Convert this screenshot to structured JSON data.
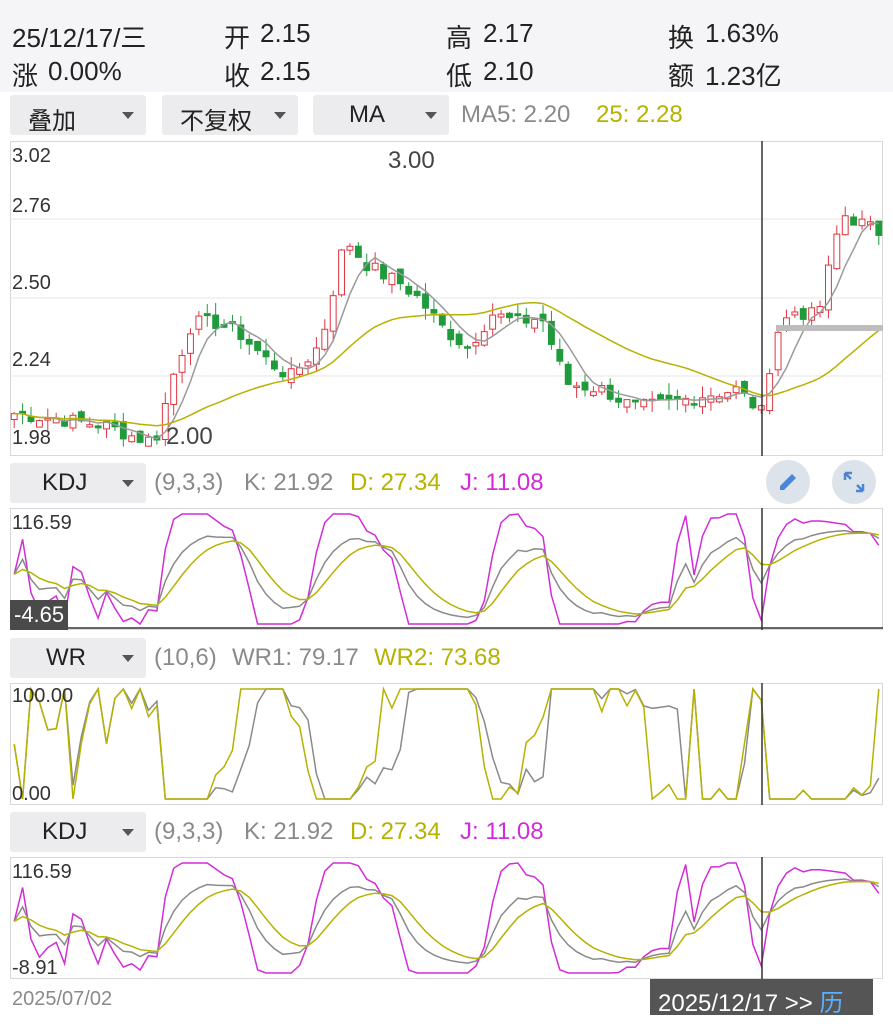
{
  "quote": {
    "date": "25/12/17/三",
    "change_label": "涨",
    "change_value": "0.00%",
    "open_label": "开",
    "open_value": "2.15",
    "close_label": "收",
    "close_value": "2.15",
    "high_label": "高",
    "high_value": "2.17",
    "low_label": "低",
    "low_value": "2.10",
    "turnover_label": "换",
    "turnover_value": "1.63%",
    "amount_label": "额",
    "amount_value": "1.23亿"
  },
  "controls": {
    "overlay": "叠加",
    "adjust": "不复权",
    "indicator": "MA",
    "ma5": "MA5: 2.20",
    "ma25": "25: 2.28"
  },
  "main_chart": {
    "y_ticks": [
      "3.02",
      "2.76",
      "2.50",
      "2.24",
      "1.98"
    ],
    "high_marker": "3.00",
    "low_marker": "2.00"
  },
  "kdj1": {
    "name": "KDJ",
    "params": "(9,3,3)",
    "k": "K: 21.92",
    "d": "D: 27.34",
    "j": "J: 11.08",
    "top": "116.59",
    "bottom": "-4.65"
  },
  "wr": {
    "name": "WR",
    "params": "(10,6)",
    "wr1": "WR1: 79.17",
    "wr2": "WR2: 73.68",
    "top": "100.00",
    "bottom": "0.00"
  },
  "kdj2": {
    "name": "KDJ",
    "params": "(9,3,3)",
    "k": "K: 21.92",
    "d": "D: 27.34",
    "j": "J: 11.08",
    "top": "116.59",
    "bottom": "-8.91"
  },
  "footer": {
    "start_date": "2025/07/02",
    "current_date": "2025/12/17 >> ",
    "history": "历"
  },
  "colors": {
    "up": "#e0343f",
    "down": "#1f9b3b",
    "ma5": "#9a9a9a",
    "ma25": "#b5b200",
    "j": "#d22cd8"
  },
  "chart_data": {
    "type": "candlestick",
    "y_range": [
      1.98,
      3.02
    ],
    "high": 3.0,
    "low": 2.0,
    "period": [
      "2025/07/02",
      "2025/12/17"
    ]
  }
}
